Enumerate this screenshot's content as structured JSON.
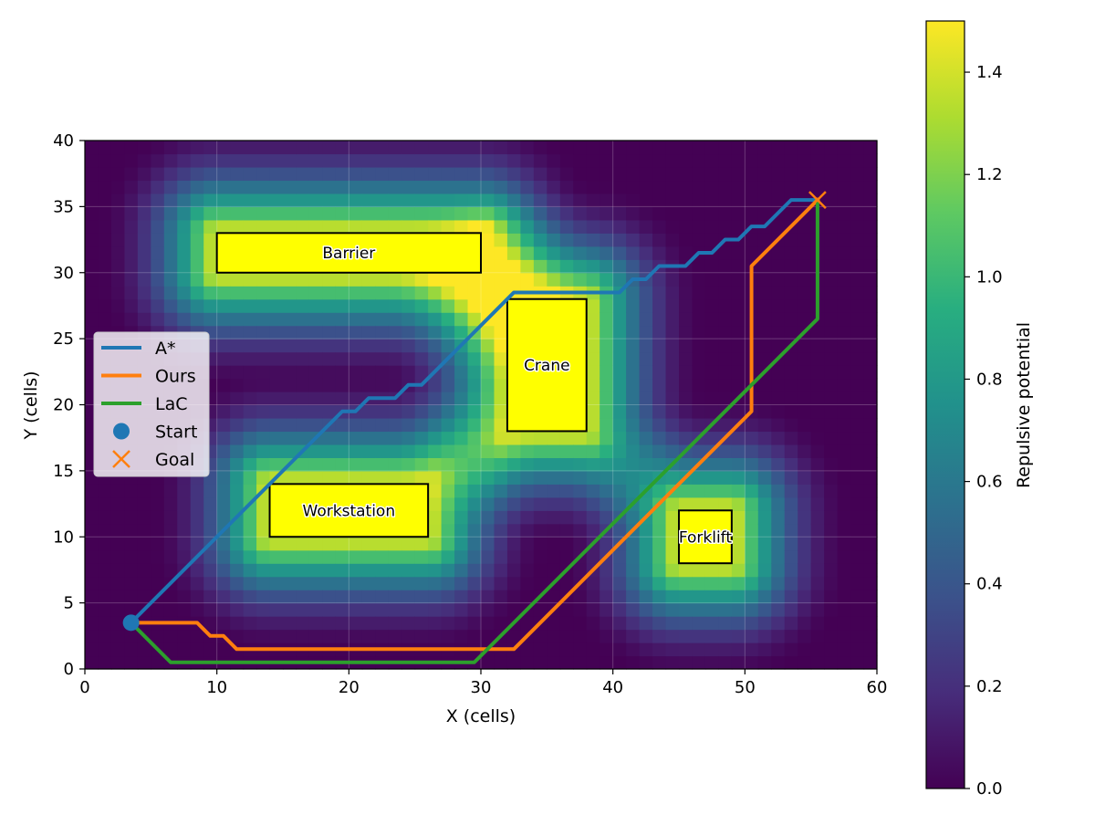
{
  "chart_data": {
    "type": "heatmap",
    "title": "",
    "xlabel": "X (cells)",
    "ylabel": "Y (cells)",
    "xlim": [
      0,
      60
    ],
    "ylim": [
      0,
      40
    ],
    "xticks": [
      "0",
      "10",
      "20",
      "30",
      "40",
      "50",
      "60"
    ],
    "yticks": [
      "0",
      "5",
      "10",
      "15",
      "20",
      "25",
      "30",
      "35",
      "40"
    ],
    "grid": true,
    "colormap": "viridis",
    "colorbar": {
      "label": "Repulsive potential",
      "range": [
        0.0,
        1.5
      ],
      "ticks": [
        "0.0",
        "0.2",
        "0.4",
        "0.6",
        "0.8",
        "1.0",
        "1.2",
        "1.4"
      ]
    },
    "potential_influence_radius_cells": 9,
    "obstacles": [
      {
        "label": "Barrier",
        "x": [
          10,
          30
        ],
        "y": [
          30,
          33
        ],
        "color": "#ffff00"
      },
      {
        "label": "Crane",
        "x": [
          32,
          38
        ],
        "y": [
          18,
          28
        ],
        "color": "#ffff00"
      },
      {
        "label": "Workstation",
        "x": [
          14,
          26
        ],
        "y": [
          10,
          14
        ],
        "color": "#ffff00"
      },
      {
        "label": "Forklift",
        "x": [
          45,
          49
        ],
        "y": [
          8,
          12
        ],
        "color": "#ffff00"
      }
    ],
    "series": [
      {
        "name": "A*",
        "color": "#1f77b4",
        "points": [
          [
            3.5,
            3.5
          ],
          [
            19.5,
            19.5
          ],
          [
            20.5,
            19.5
          ],
          [
            21.5,
            20.5
          ],
          [
            23.5,
            20.5
          ],
          [
            24.5,
            21.5
          ],
          [
            25.5,
            21.5
          ],
          [
            32.5,
            28.5
          ],
          [
            40.5,
            28.5
          ],
          [
            41.5,
            29.5
          ],
          [
            42.5,
            29.5
          ],
          [
            43.5,
            30.5
          ],
          [
            45.5,
            30.5
          ],
          [
            46.5,
            31.5
          ],
          [
            47.5,
            31.5
          ],
          [
            48.5,
            32.5
          ],
          [
            49.5,
            32.5
          ],
          [
            50.5,
            33.5
          ],
          [
            51.5,
            33.5
          ],
          [
            53.5,
            35.5
          ],
          [
            55.5,
            35.5
          ]
        ]
      },
      {
        "name": "Ours",
        "color": "#ff7f0e",
        "points": [
          [
            3.5,
            3.5
          ],
          [
            8.5,
            3.5
          ],
          [
            9.5,
            2.5
          ],
          [
            10.5,
            2.5
          ],
          [
            11.5,
            1.5
          ],
          [
            32.5,
            1.5
          ],
          [
            50.5,
            19.5
          ],
          [
            50.5,
            30.5
          ],
          [
            55.5,
            35.5
          ]
        ]
      },
      {
        "name": "LaC",
        "color": "#2ca02c",
        "points": [
          [
            3.5,
            3.5
          ],
          [
            6.5,
            0.5
          ],
          [
            29.5,
            0.5
          ],
          [
            55.5,
            26.5
          ],
          [
            55.5,
            35.5
          ]
        ]
      }
    ],
    "start": {
      "name": "Start",
      "x": 3.5,
      "y": 3.5,
      "color": "#1f77b4"
    },
    "goal": {
      "name": "Goal",
      "x": 55.5,
      "y": 35.5,
      "color": "#ff7f0e"
    },
    "legend": {
      "placement": "center-left",
      "entries": [
        "A*",
        "Ours",
        "LaC",
        "Start",
        "Goal"
      ]
    }
  }
}
